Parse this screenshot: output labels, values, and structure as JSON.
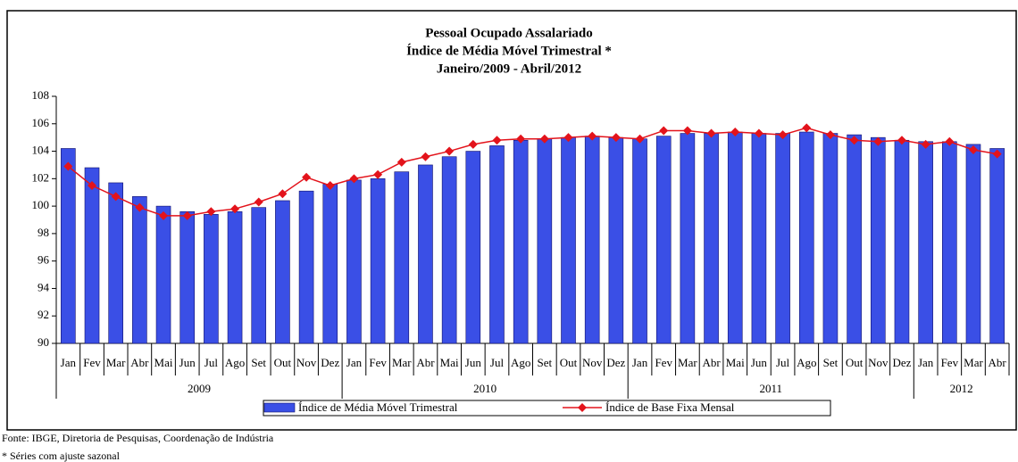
{
  "chart_data": {
    "type": "bar_line",
    "title": [
      "Pessoal Ocupado Assalariado",
      "Índice de Média Móvel Trimestral *",
      "Janeiro/2009 - Abril/2012"
    ],
    "categories": [
      "Jan",
      "Fev",
      "Mar",
      "Abr",
      "Mai",
      "Jun",
      "Jul",
      "Ago",
      "Set",
      "Out",
      "Nov",
      "Dez",
      "Jan",
      "Fev",
      "Mar",
      "Abr",
      "Mai",
      "Jun",
      "Jul",
      "Ago",
      "Set",
      "Out",
      "Nov",
      "Dez",
      "Jan",
      "Fev",
      "Mar",
      "Abr",
      "Mai",
      "Jun",
      "Jul",
      "Ago",
      "Set",
      "Out",
      "Nov",
      "Dez",
      "Jan",
      "Fev",
      "Mar",
      "Abr"
    ],
    "years": [
      "2009",
      "2009",
      "2009",
      "2009",
      "2009",
      "2009",
      "2009",
      "2009",
      "2009",
      "2009",
      "2009",
      "2009",
      "2010",
      "2010",
      "2010",
      "2010",
      "2010",
      "2010",
      "2010",
      "2010",
      "2010",
      "2010",
      "2010",
      "2010",
      "2011",
      "2011",
      "2011",
      "2011",
      "2011",
      "2011",
      "2011",
      "2011",
      "2011",
      "2011",
      "2011",
      "2011",
      "2012",
      "2012",
      "2012",
      "2012"
    ],
    "series": [
      {
        "name": "Índice de Média Móvel Trimestral",
        "kind": "bar",
        "color": "#3a4fe6",
        "values": [
          104.2,
          102.8,
          101.7,
          100.7,
          100.0,
          99.6,
          99.4,
          99.6,
          99.9,
          100.4,
          101.1,
          101.6,
          101.9,
          102.0,
          102.5,
          103.0,
          103.6,
          104.0,
          104.4,
          104.8,
          104.9,
          105.0,
          105.1,
          105.0,
          104.9,
          105.1,
          105.3,
          105.3,
          105.4,
          105.3,
          105.3,
          105.4,
          105.3,
          105.2,
          105.0,
          104.8,
          104.7,
          104.7,
          104.5,
          104.2
        ]
      },
      {
        "name": "Índice de Base Fixa Mensal",
        "kind": "line",
        "color": "#e3131b",
        "values": [
          102.9,
          101.5,
          100.7,
          99.9,
          99.3,
          99.3,
          99.6,
          99.8,
          100.3,
          100.9,
          102.1,
          101.5,
          102.0,
          102.3,
          103.2,
          103.6,
          104.0,
          104.5,
          104.8,
          104.9,
          104.9,
          105.0,
          105.1,
          105.0,
          104.9,
          105.5,
          105.5,
          105.3,
          105.4,
          105.3,
          105.2,
          105.7,
          105.2,
          104.8,
          104.7,
          104.8,
          104.5,
          104.7,
          104.1,
          103.8
        ]
      }
    ],
    "ylim": [
      90,
      108
    ],
    "yticks": [
      90,
      92,
      94,
      96,
      98,
      100,
      102,
      104,
      106,
      108
    ],
    "grid": false,
    "legend": "bottom"
  },
  "footer": {
    "source": "Fonte: IBGE, Diretoria de Pesquisas, Coordenação de Indústria",
    "note": "* Séries com ajuste sazonal"
  }
}
